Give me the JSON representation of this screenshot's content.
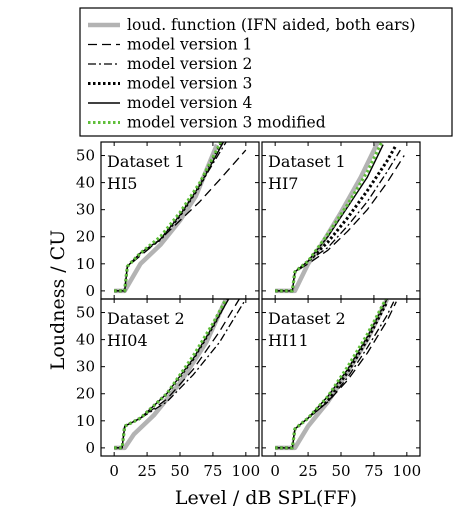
{
  "legend": {
    "entries": [
      {
        "label": "loud. function (IFN aided, both ears)",
        "color": "#b3b3b3",
        "style": "thick-solid"
      },
      {
        "label": "model version 1",
        "color": "#000000",
        "style": "dashed"
      },
      {
        "label": "model version 2",
        "color": "#000000",
        "style": "dashdot"
      },
      {
        "label": "model version 3",
        "color": "#000000",
        "style": "dotted-thick"
      },
      {
        "label": "model version 4",
        "color": "#000000",
        "style": "solid"
      },
      {
        "label": "model version 3 modified",
        "color": "#5fbf3a",
        "style": "dotted-green"
      }
    ]
  },
  "axes": {
    "xlabel": "Level / dB SPL(FF)",
    "ylabel": "Loudness / CU",
    "xlim": [
      -10,
      110
    ],
    "ylim": [
      -3,
      55
    ],
    "x_ticks": [
      0,
      25,
      50,
      75,
      100
    ],
    "y_ticks": [
      0,
      10,
      20,
      30,
      40,
      50
    ]
  },
  "chart_data": [
    {
      "type": "line",
      "dataset": "Dataset 1",
      "subject": "HI5",
      "series": [
        {
          "name": "loud. function (IFN aided, both ears)",
          "x": [
            0,
            8,
            20,
            35,
            50,
            62,
            78
          ],
          "y": [
            0,
            0,
            10,
            17,
            26,
            35,
            54
          ]
        },
        {
          "name": "model version 1",
          "x": [
            0,
            8,
            10,
            20,
            35,
            50,
            65,
            80,
            100
          ],
          "y": [
            0,
            0,
            9,
            13,
            19,
            26,
            33,
            41,
            52
          ]
        },
        {
          "name": "model version 2",
          "x": [
            0,
            8,
            10,
            20,
            35,
            50,
            65,
            85
          ],
          "y": [
            0,
            0,
            9,
            14,
            19,
            28,
            39,
            55
          ]
        },
        {
          "name": "model version 3",
          "x": [
            0,
            8,
            10,
            20,
            35,
            50,
            65,
            82
          ],
          "y": [
            0,
            0,
            9,
            14,
            19,
            28,
            39,
            55
          ]
        },
        {
          "name": "model version 4",
          "x": [
            0,
            8,
            10,
            20,
            35,
            50,
            65,
            83
          ],
          "y": [
            0,
            0,
            9,
            14,
            19,
            28,
            39,
            55
          ]
        },
        {
          "name": "model version 3 modified",
          "x": [
            0,
            8,
            10,
            20,
            35,
            50,
            65,
            81
          ],
          "y": [
            0,
            0,
            9,
            14,
            20,
            29,
            40,
            55
          ]
        }
      ]
    },
    {
      "type": "line",
      "dataset": "Dataset 1",
      "subject": "HI7",
      "series": [
        {
          "name": "loud. function (IFN aided, both ears)",
          "x": [
            0,
            15,
            25,
            35,
            50,
            65,
            78
          ],
          "y": [
            0,
            0,
            10,
            17,
            29,
            42,
            55
          ]
        },
        {
          "name": "model version 1",
          "x": [
            0,
            13,
            15,
            25,
            40,
            55,
            70,
            85,
            98
          ],
          "y": [
            0,
            0,
            7,
            10,
            15,
            22,
            30,
            40,
            50
          ]
        },
        {
          "name": "model version 2",
          "x": [
            0,
            13,
            15,
            25,
            40,
            55,
            70,
            85,
            95
          ],
          "y": [
            0,
            0,
            7,
            11,
            16,
            24,
            33,
            44,
            52
          ]
        },
        {
          "name": "model version 3",
          "x": [
            0,
            13,
            15,
            25,
            40,
            55,
            70,
            85,
            92
          ],
          "y": [
            0,
            0,
            7,
            11,
            18,
            27,
            37,
            48,
            54
          ]
        },
        {
          "name": "model version 4",
          "x": [
            0,
            13,
            15,
            25,
            40,
            55,
            70,
            82
          ],
          "y": [
            0,
            0,
            7,
            11,
            20,
            31,
            42,
            54
          ]
        },
        {
          "name": "model version 3 modified",
          "x": [
            0,
            13,
            15,
            25,
            40,
            55,
            70,
            81
          ],
          "y": [
            0,
            0,
            7,
            11,
            21,
            32,
            44,
            55
          ]
        }
      ]
    },
    {
      "type": "line",
      "dataset": "Dataset 2",
      "subject": "HI04",
      "series": [
        {
          "name": "loud. function (IFN aided, both ears)",
          "x": [
            0,
            8,
            15,
            30,
            50,
            70,
            85
          ],
          "y": [
            0,
            0,
            5,
            12,
            24,
            39,
            55
          ]
        },
        {
          "name": "model version 1",
          "x": [
            0,
            6,
            8,
            20,
            40,
            60,
            80,
            95
          ],
          "y": [
            0,
            0,
            8,
            11,
            18,
            29,
            43,
            55
          ]
        },
        {
          "name": "model version 2",
          "x": [
            0,
            6,
            8,
            20,
            40,
            60,
            80,
            100
          ],
          "y": [
            0,
            0,
            8,
            11,
            17,
            27,
            39,
            55
          ]
        },
        {
          "name": "model version 3",
          "x": [
            0,
            6,
            8,
            20,
            40,
            60,
            75,
            86
          ],
          "y": [
            0,
            0,
            8,
            11,
            20,
            33,
            45,
            55
          ]
        },
        {
          "name": "model version 4",
          "x": [
            0,
            6,
            8,
            20,
            40,
            60,
            75,
            87
          ],
          "y": [
            0,
            0,
            8,
            11,
            20,
            33,
            45,
            55
          ]
        },
        {
          "name": "model version 3 modified",
          "x": [
            0,
            6,
            8,
            20,
            40,
            60,
            75,
            85
          ],
          "y": [
            0,
            0,
            8,
            11,
            20,
            34,
            46,
            55
          ]
        }
      ]
    },
    {
      "type": "line",
      "dataset": "Dataset 2",
      "subject": "HI11",
      "series": [
        {
          "name": "loud. function (IFN aided, both ears)",
          "x": [
            0,
            15,
            25,
            40,
            55,
            70,
            85
          ],
          "y": [
            0,
            0,
            8,
            17,
            28,
            40,
            55
          ]
        },
        {
          "name": "model version 1",
          "x": [
            0,
            13,
            15,
            25,
            40,
            55,
            70,
            85,
            92
          ],
          "y": [
            0,
            0,
            7,
            11,
            17,
            25,
            35,
            47,
            54
          ]
        },
        {
          "name": "model version 2",
          "x": [
            0,
            13,
            15,
            25,
            40,
            55,
            70,
            85,
            90
          ],
          "y": [
            0,
            0,
            7,
            11,
            17,
            26,
            37,
            49,
            54
          ]
        },
        {
          "name": "model version 3",
          "x": [
            0,
            13,
            15,
            25,
            40,
            55,
            70,
            85
          ],
          "y": [
            0,
            0,
            7,
            11,
            18,
            28,
            40,
            54
          ]
        },
        {
          "name": "model version 4",
          "x": [
            0,
            13,
            15,
            25,
            40,
            55,
            70,
            85
          ],
          "y": [
            0,
            0,
            7,
            11,
            19,
            29,
            41,
            55
          ]
        },
        {
          "name": "model version 3 modified",
          "x": [
            0,
            13,
            15,
            25,
            40,
            55,
            70,
            84
          ],
          "y": [
            0,
            0,
            7,
            11,
            19,
            30,
            42,
            55
          ]
        }
      ]
    }
  ]
}
